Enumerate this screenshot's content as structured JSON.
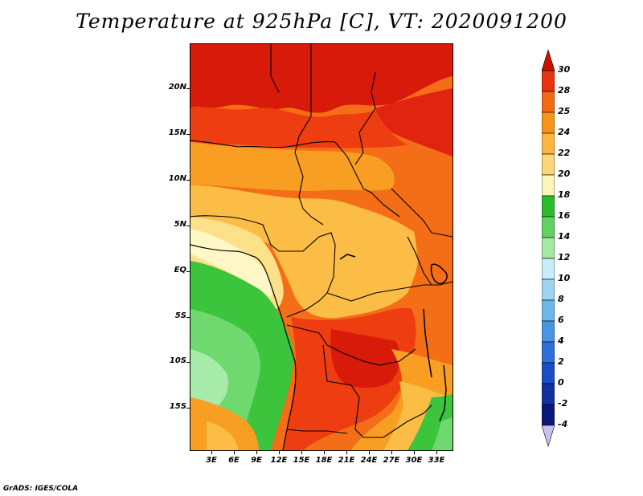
{
  "title": "Temperature at 925hPa [C], VT: 2020091200",
  "footer": "GrADS: IGES/COLA",
  "map": {
    "lat_labels": [
      "20N",
      "15N",
      "10N",
      "5N",
      "EQ",
      "5S",
      "10S",
      "15S"
    ],
    "lon_labels": [
      "3E",
      "6E",
      "9E",
      "12E",
      "15E",
      "18E",
      "21E",
      "24E",
      "27E",
      "30E",
      "33E"
    ],
    "lat_range": [
      -19.5,
      24.5
    ],
    "lon_range": [
      0.5,
      35.5
    ],
    "colors": {
      "c30": "#d71a0a",
      "c28": "#ee3d10",
      "c25": "#f46e18",
      "c24": "#f89e22",
      "c22": "#fbbd45",
      "c20": "#fde18a",
      "c18": "#fff7c5",
      "c16": "#3cc43c",
      "c14": "#6fd86f",
      "c12": "#a6ebaa"
    }
  },
  "colorbar": {
    "labels": [
      "30",
      "28",
      "25",
      "24",
      "22",
      "20",
      "18",
      "16",
      "14",
      "12",
      "10",
      "8",
      "6",
      "4",
      "2",
      "0",
      "-2",
      "-4"
    ],
    "colors": [
      "#cc1100",
      "#e83210",
      "#f26a14",
      "#f7941c",
      "#fbb640",
      "#fdd57a",
      "#fef3b8",
      "#2bbb2b",
      "#61d161",
      "#a3e8a3",
      "#c9ecfa",
      "#9fd3f2",
      "#6fb6ea",
      "#4995e3",
      "#2e6fd9",
      "#1b4cc6",
      "#1330a3",
      "#0c1875",
      "#c8c0ee"
    ]
  }
}
